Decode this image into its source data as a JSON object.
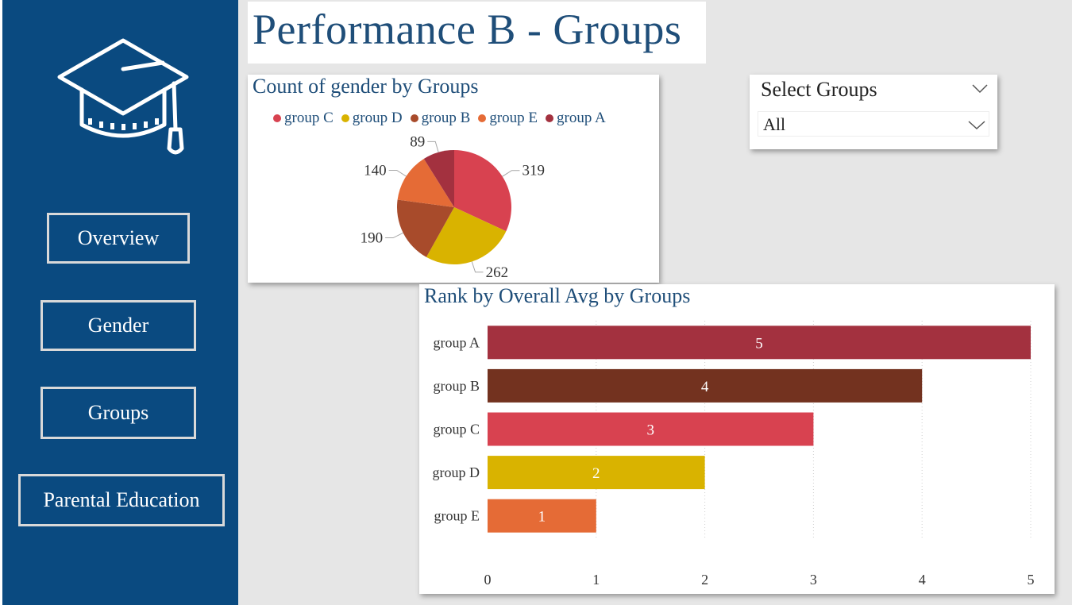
{
  "page": {
    "title": "Performance B - Groups"
  },
  "sidebar": {
    "logo_icon": "graduation-cap-icon",
    "nav": [
      {
        "label": "Overview"
      },
      {
        "label": "Gender"
      },
      {
        "label": "Groups"
      },
      {
        "label": "Parental Education"
      }
    ]
  },
  "slicer": {
    "title": "Select Groups",
    "selected": "All",
    "icon": "chevron-down-icon"
  },
  "colors": {
    "sidebar": "#0a4a80",
    "group_A": "#a3313f",
    "group_B": "#73321f",
    "group_C": "#d84250",
    "group_D": "#d9b300",
    "group_E": "#e56b36",
    "pie_B": "#a84b2b"
  },
  "chart_data": [
    {
      "type": "pie",
      "title": "Count of gender by Groups",
      "legend": [
        "group C",
        "group D",
        "group B",
        "group E",
        "group A"
      ],
      "slices": [
        {
          "name": "group C",
          "value": 319,
          "color": "#d84250"
        },
        {
          "name": "group D",
          "value": 262,
          "color": "#d9b300"
        },
        {
          "name": "group B",
          "value": 190,
          "color": "#a84b2b"
        },
        {
          "name": "group E",
          "value": 140,
          "color": "#e56b36"
        },
        {
          "name": "group A",
          "value": 89,
          "color": "#a3313f"
        }
      ]
    },
    {
      "type": "bar",
      "orientation": "horizontal",
      "title": "Rank by Overall Avg by Groups",
      "categories": [
        "group A",
        "group B",
        "group C",
        "group D",
        "group E"
      ],
      "values": [
        5,
        4,
        3,
        2,
        1
      ],
      "colors": [
        "#a3313f",
        "#73321f",
        "#d84250",
        "#d9b300",
        "#e56b36"
      ],
      "xlim": [
        0,
        5
      ],
      "xticks": [
        "0",
        "1",
        "2",
        "3",
        "4",
        "5"
      ],
      "grid": true
    }
  ]
}
